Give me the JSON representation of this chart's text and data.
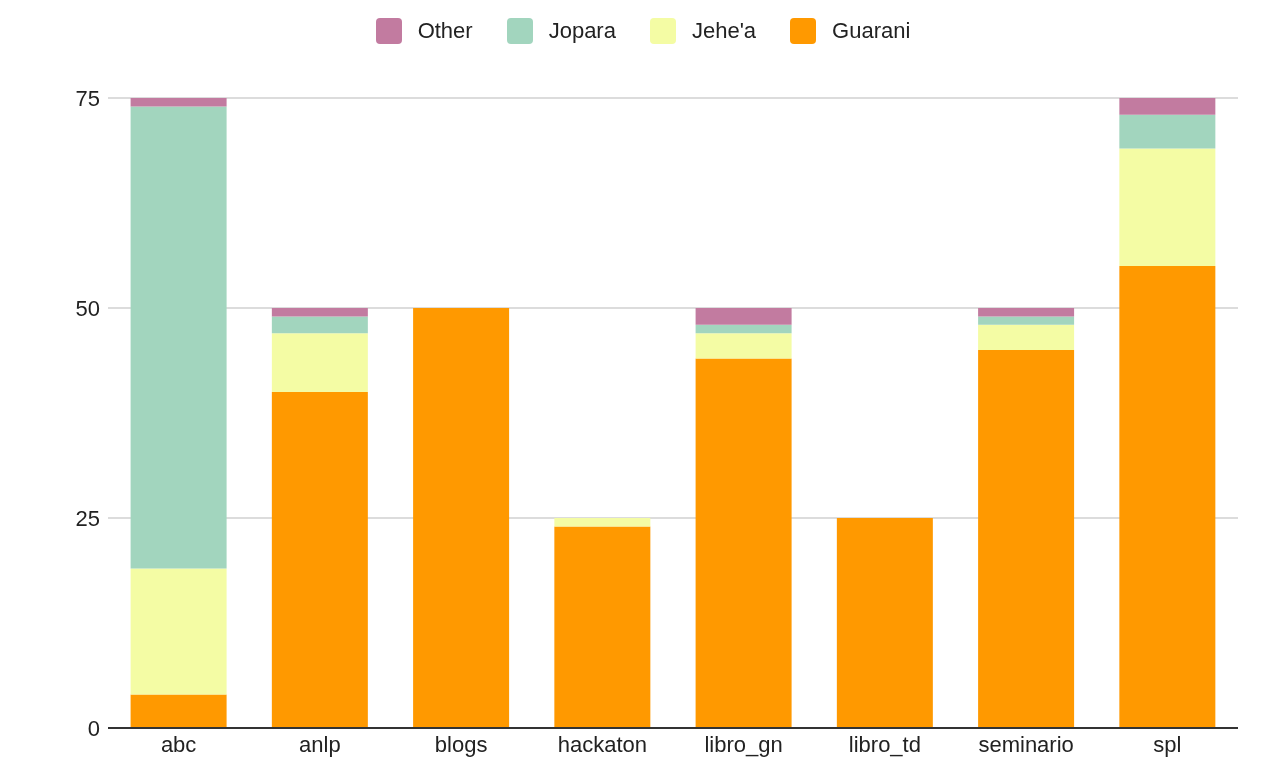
{
  "chart_data": {
    "type": "bar",
    "stacked": true,
    "categories": [
      "abc",
      "anlp",
      "blogs",
      "hackaton",
      "libro_gn",
      "libro_td",
      "seminario",
      "spl"
    ],
    "series": [
      {
        "name": "Guarani",
        "color": "#ff9900",
        "values": [
          4,
          40,
          50,
          24,
          44,
          25,
          45,
          55
        ]
      },
      {
        "name": "Jehe'a",
        "color": "#f4fca4",
        "values": [
          15,
          7,
          0,
          1,
          3,
          0,
          3,
          14
        ]
      },
      {
        "name": "Jopara",
        "color": "#a2d5be",
        "values": [
          55,
          2,
          0,
          0,
          1,
          0,
          1,
          4
        ]
      },
      {
        "name": "Other",
        "color": "#c27ba0",
        "values": [
          1,
          1,
          0,
          0,
          2,
          0,
          1,
          2
        ]
      }
    ],
    "ylim": [
      0,
      75
    ],
    "yticks": [
      0,
      25,
      50,
      75
    ],
    "grid": "y",
    "legend": "top"
  }
}
